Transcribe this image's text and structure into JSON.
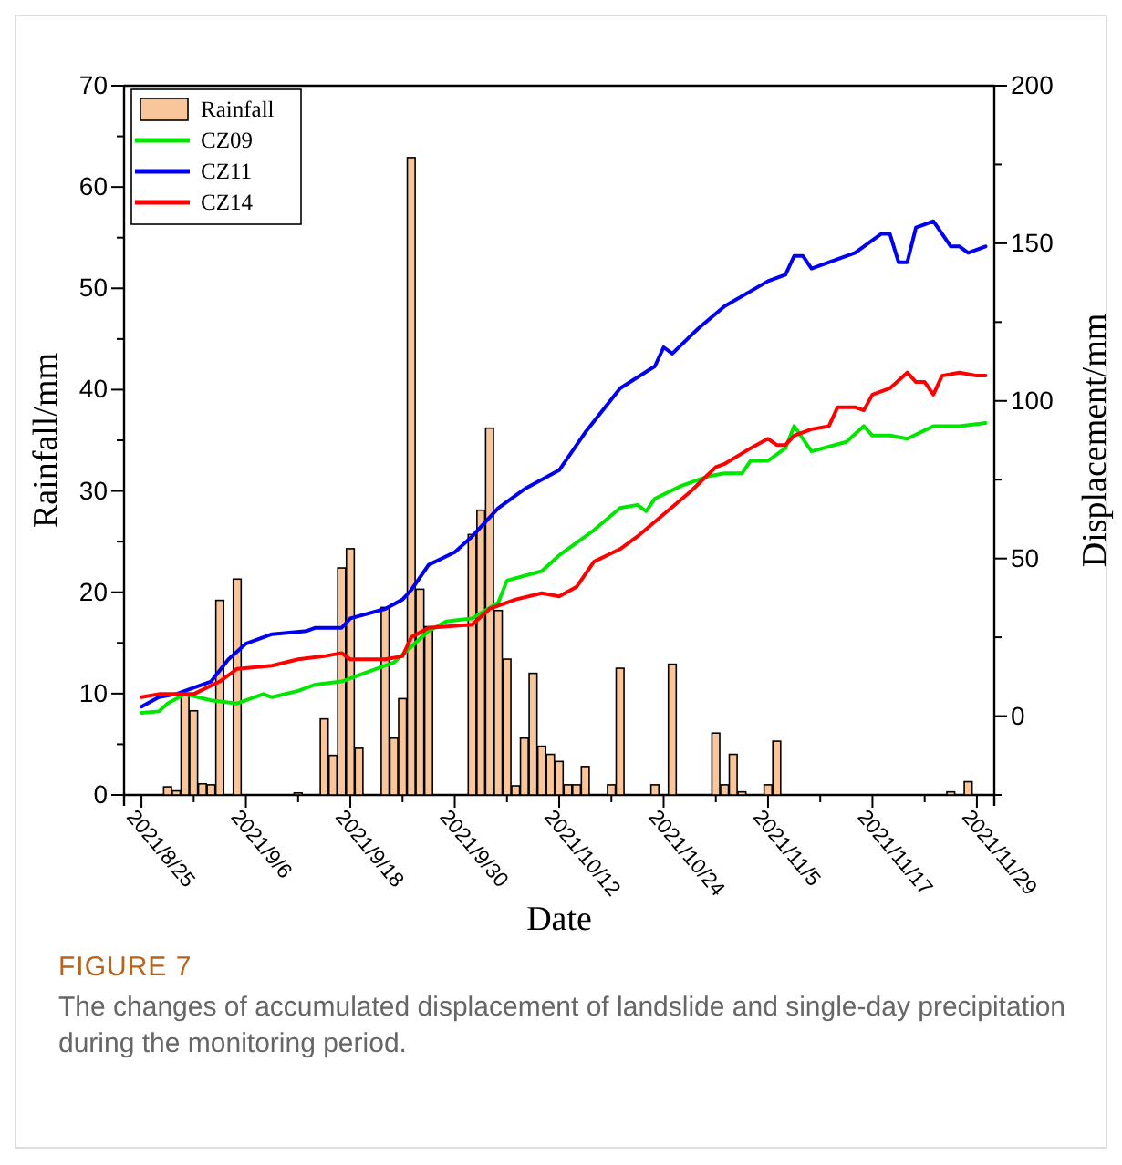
{
  "chart_data": {
    "type": "bar",
    "xlabel": "Date",
    "ylabel": "Rainfall/mm",
    "y2label": "Displacement/mm",
    "annotations": [
      "FIGURE 7",
      "The changes of accumulated displacement of landslide and single-day precipitation during the monitoring period."
    ],
    "xlim": [
      "2021-08-23",
      "2021-12-01"
    ],
    "xticks": [
      {
        "value": "2021-08-25",
        "label": "2021/8/25"
      },
      {
        "value": "2021-08-31",
        "label": null
      },
      {
        "value": "2021-09-06",
        "label": "2021/9/6"
      },
      {
        "value": "2021-09-12",
        "label": null
      },
      {
        "value": "2021-09-18",
        "label": "2021/9/18"
      },
      {
        "value": "2021-09-24",
        "label": null
      },
      {
        "value": "2021-09-30",
        "label": "2021/9/30"
      },
      {
        "value": "2021-10-06",
        "label": null
      },
      {
        "value": "2021-10-12",
        "label": "2021/10/12"
      },
      {
        "value": "2021-10-18",
        "label": null
      },
      {
        "value": "2021-10-24",
        "label": "2021/10/24"
      },
      {
        "value": "2021-10-30",
        "label": null
      },
      {
        "value": "2021-11-05",
        "label": "2021/11/5"
      },
      {
        "value": "2021-11-11",
        "label": null
      },
      {
        "value": "2021-11-17",
        "label": "2021/11/17"
      },
      {
        "value": "2021-11-23",
        "label": null
      },
      {
        "value": "2021-11-29",
        "label": "2021/11/29"
      }
    ],
    "ylim": [
      0,
      70
    ],
    "yticks": [
      0,
      {
        "value": 5,
        "label": null
      },
      10,
      {
        "value": 15,
        "label": null
      },
      20,
      {
        "value": 25,
        "label": null
      },
      30,
      {
        "value": 35,
        "label": null
      },
      40,
      {
        "value": 45,
        "label": null
      },
      50,
      {
        "value": 55,
        "label": null
      },
      60,
      {
        "value": 65,
        "label": null
      },
      70
    ],
    "y2lim": [
      -25,
      200
    ],
    "y2ticks": [
      {
        "value": -25,
        "label": null
      },
      0,
      {
        "value": 25,
        "label": null
      },
      50,
      {
        "value": 75,
        "label": null
      },
      100,
      {
        "value": 125,
        "label": null
      },
      150,
      {
        "value": 175,
        "label": null
      },
      200
    ],
    "legend": "top left",
    "grid": false,
    "series": [
      {
        "name": "Rainfall",
        "color": "#f9c59a",
        "x": [
          "2021-08-28",
          "2021-08-29",
          "2021-08-30",
          "2021-08-31",
          "2021-09-01",
          "2021-09-02",
          "2021-09-03",
          "2021-09-05",
          "2021-09-12",
          "2021-09-15",
          "2021-09-16",
          "2021-09-17",
          "2021-09-18",
          "2021-09-19",
          "2021-09-22",
          "2021-09-23",
          "2021-09-24",
          "2021-09-25",
          "2021-09-26",
          "2021-09-27",
          "2021-10-02",
          "2021-10-03",
          "2021-10-04",
          "2021-10-05",
          "2021-10-06",
          "2021-10-07",
          "2021-10-08",
          "2021-10-09",
          "2021-10-10",
          "2021-10-11",
          "2021-10-12",
          "2021-10-13",
          "2021-10-14",
          "2021-10-15",
          "2021-10-18",
          "2021-10-19",
          "2021-10-23",
          "2021-10-25",
          "2021-10-30",
          "2021-10-31",
          "2021-11-01",
          "2021-11-02",
          "2021-11-05",
          "2021-11-06",
          "2021-11-26",
          "2021-11-28"
        ],
        "values": [
          0.8,
          0.4,
          9.9,
          8.3,
          1.1,
          1.0,
          19.2,
          21.3,
          0.2,
          7.5,
          3.9,
          22.4,
          24.3,
          4.6,
          18.5,
          5.6,
          9.5,
          62.9,
          20.3,
          16.6,
          25.7,
          28.1,
          36.2,
          18.2,
          13.4,
          0.9,
          5.6,
          12.0,
          4.8,
          4.0,
          3.3,
          1.0,
          1.0,
          2.8,
          1.0,
          12.5,
          1.0,
          12.9,
          6.1,
          1.0,
          4.0,
          0.3,
          1.0,
          5.3,
          0.3,
          1.3
        ]
      },
      {
        "name": "CZ09",
        "type": "line",
        "axis": "y2",
        "color": "#00e600",
        "x": [
          "2021-08-25",
          "2021-08-27",
          "2021-08-28",
          "2021-08-30",
          "2021-09-02",
          "2021-09-05",
          "2021-09-08",
          "2021-09-09",
          "2021-09-12",
          "2021-09-14",
          "2021-09-17",
          "2021-09-20",
          "2021-09-23",
          "2021-09-25",
          "2021-09-27",
          "2021-09-29",
          "2021-10-02",
          "2021-10-05",
          "2021-10-06",
          "2021-10-10",
          "2021-10-12",
          "2021-10-16",
          "2021-10-19",
          "2021-10-21",
          "2021-10-22",
          "2021-10-23",
          "2021-10-26",
          "2021-10-29",
          "2021-10-31",
          "2021-11-02",
          "2021-11-03",
          "2021-11-05",
          "2021-11-07",
          "2021-11-08",
          "2021-11-10",
          "2021-11-14",
          "2021-11-16",
          "2021-11-17",
          "2021-11-19",
          "2021-11-21",
          "2021-11-24",
          "2021-11-27",
          "2021-11-30"
        ],
        "values": [
          1,
          1.5,
          4,
          7,
          5,
          4,
          7,
          6,
          8,
          10,
          11,
          14,
          17,
          22,
          27,
          30,
          31,
          36,
          43,
          46,
          51,
          59,
          66,
          67,
          65,
          69,
          73,
          76,
          77,
          77,
          81,
          81,
          85,
          92,
          84,
          87,
          92,
          89,
          89,
          88,
          92,
          92,
          93
        ]
      },
      {
        "name": "CZ11",
        "type": "line",
        "axis": "y2",
        "color": "#0000ee",
        "x": [
          "2021-08-25",
          "2021-08-27",
          "2021-08-29",
          "2021-08-30",
          "2021-09-02",
          "2021-09-04",
          "2021-09-06",
          "2021-09-09",
          "2021-09-13",
          "2021-09-14",
          "2021-09-17",
          "2021-09-18",
          "2021-09-22",
          "2021-09-24",
          "2021-09-25",
          "2021-09-27",
          "2021-09-30",
          "2021-10-02",
          "2021-10-05",
          "2021-10-08",
          "2021-10-12",
          "2021-10-15",
          "2021-10-19",
          "2021-10-23",
          "2021-10-24",
          "2021-10-25",
          "2021-10-28",
          "2021-10-31",
          "2021-11-05",
          "2021-11-07",
          "2021-11-08",
          "2021-11-09",
          "2021-11-10",
          "2021-11-15",
          "2021-11-18",
          "2021-11-19",
          "2021-11-20",
          "2021-11-21",
          "2021-11-22",
          "2021-11-24",
          "2021-11-26",
          "2021-11-27",
          "2021-11-28",
          "2021-11-30"
        ],
        "values": [
          3,
          6,
          7,
          8,
          11,
          18,
          23,
          26,
          27,
          28,
          28,
          31,
          34,
          37,
          40,
          48,
          52,
          57,
          66,
          72,
          78,
          90,
          104,
          111,
          117,
          115,
          123,
          130,
          138,
          140,
          146,
          146,
          142,
          147,
          153,
          153,
          144,
          144,
          155,
          157,
          149,
          149,
          147,
          149
        ]
      },
      {
        "name": "CZ14",
        "type": "line",
        "axis": "y2",
        "color": "#ff0000",
        "x": [
          "2021-08-25",
          "2021-08-27",
          "2021-08-29",
          "2021-08-31",
          "2021-09-03",
          "2021-09-05",
          "2021-09-09",
          "2021-09-12",
          "2021-09-15",
          "2021-09-17",
          "2021-09-18",
          "2021-09-22",
          "2021-09-24",
          "2021-09-25",
          "2021-09-27",
          "2021-10-02",
          "2021-10-04",
          "2021-10-07",
          "2021-10-10",
          "2021-10-12",
          "2021-10-14",
          "2021-10-16",
          "2021-10-19",
          "2021-10-21",
          "2021-10-24",
          "2021-10-27",
          "2021-10-30",
          "2021-10-31",
          "2021-11-03",
          "2021-11-05",
          "2021-11-06",
          "2021-11-07",
          "2021-11-08",
          "2021-11-10",
          "2021-11-12",
          "2021-11-13",
          "2021-11-15",
          "2021-11-16",
          "2021-11-17",
          "2021-11-19",
          "2021-11-21",
          "2021-11-22",
          "2021-11-23",
          "2021-11-24",
          "2021-11-25",
          "2021-11-27",
          "2021-11-29",
          "2021-11-30"
        ],
        "values": [
          6,
          7,
          7,
          7,
          11,
          15,
          16,
          18,
          19,
          20,
          18,
          18,
          19,
          25,
          28,
          29,
          34,
          37,
          39,
          38,
          41,
          49,
          53,
          57,
          64,
          71,
          79,
          80,
          85,
          88,
          86,
          86,
          89,
          91,
          92,
          98,
          98,
          97,
          102,
          104,
          109,
          106,
          106,
          102,
          108,
          109,
          108,
          108
        ]
      }
    ]
  }
}
